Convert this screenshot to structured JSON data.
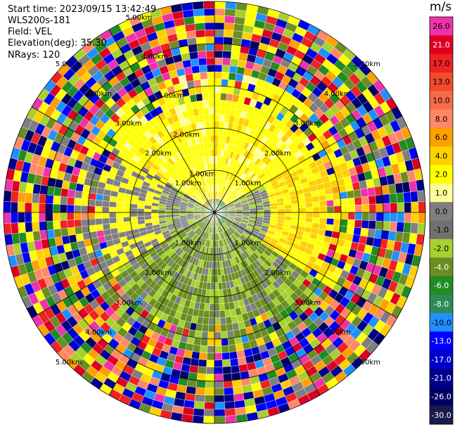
{
  "header": {
    "start_time": "Start time: 2023/09/15 13:42:49",
    "site": "WLS200s-181",
    "field": "Field: VEL",
    "elevation": "Elevation(deg): 35.30",
    "nrays": "NRays: 120"
  },
  "colorbar": {
    "unit": "m/s",
    "levels": [
      {
        "label": "26.0",
        "color": "#ee33aa"
      },
      {
        "label": "21.0",
        "color": "#dd0022"
      },
      {
        "label": "17.0",
        "color": "#ee2222"
      },
      {
        "label": "13.0",
        "color": "#f24a2a"
      },
      {
        "label": "10.0",
        "color": "#f76b4a"
      },
      {
        "label": "8.0",
        "color": "#ff8866"
      },
      {
        "label": "6.0",
        "color": "#ffa000"
      },
      {
        "label": "4.0",
        "color": "#ffd000"
      },
      {
        "label": "2.0",
        "color": "#ffff00"
      },
      {
        "label": "1.0",
        "color": "#ffff99"
      },
      {
        "label": "0.0",
        "color": "#7f7f7f"
      },
      {
        "label": "-1.0",
        "color": "#707070"
      },
      {
        "label": "-2.0",
        "color": "#a6d12e"
      },
      {
        "label": "-4.0",
        "color": "#6b8e23"
      },
      {
        "label": "-6.0",
        "color": "#228b22"
      },
      {
        "label": "-8.0",
        "color": "#2e8b57"
      },
      {
        "label": "-10.0",
        "color": "#1e90ff"
      },
      {
        "label": "-13.0",
        "color": "#0000ff"
      },
      {
        "label": "-17.0",
        "color": "#0000cd"
      },
      {
        "label": "-21.0",
        "color": "#00008b"
      },
      {
        "label": "-26.0",
        "color": "#000066"
      },
      {
        "label": "-30.0",
        "color": "#1a1a4d"
      }
    ]
  },
  "range_rings": {
    "labels": [
      "1.00km",
      "2.00km",
      "3.00km",
      "4.00km",
      "5.00km"
    ]
  },
  "ppi": {
    "nrays": 120,
    "ngates": 30,
    "max_range_km": 5.0
  }
}
